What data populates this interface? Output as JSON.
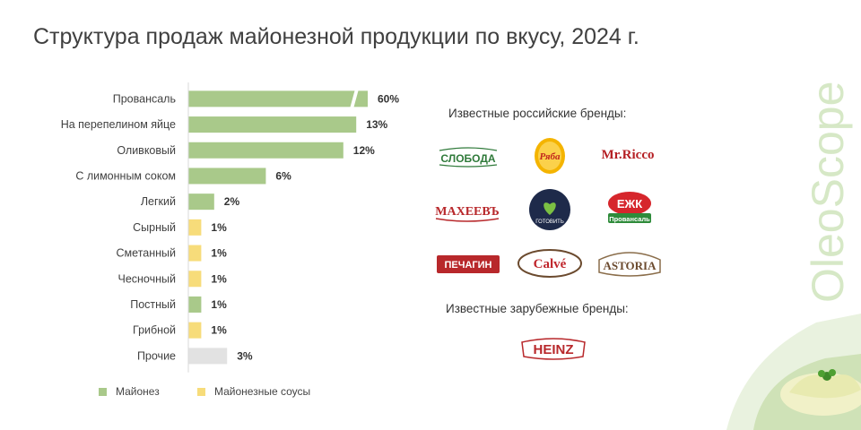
{
  "title": "Структура продаж майонезной продукции по вкусу, 2024 г.",
  "colors": {
    "mayonnaise": "#a9c98a",
    "sauce": "#f7dc7a",
    "other": "#e2e2e2"
  },
  "chart_data": {
    "type": "bar",
    "orientation": "horizontal",
    "categories": [
      "Провансаль",
      "На перепелином яйце",
      "Оливковый",
      "С лимонным соком",
      "Легкий",
      "Сырный",
      "Сметанный",
      "Чесночный",
      "Постный",
      "Грибной",
      "Прочие"
    ],
    "values": [
      60,
      13,
      12,
      6,
      2,
      1,
      1,
      1,
      1,
      1,
      3
    ],
    "value_labels": [
      "60%",
      "13%",
      "12%",
      "6%",
      "2%",
      "1%",
      "1%",
      "1%",
      "1%",
      "1%",
      "3%"
    ],
    "groups": [
      "mayonnaise",
      "mayonnaise",
      "mayonnaise",
      "mayonnaise",
      "mayonnaise",
      "sauce",
      "sauce",
      "sauce",
      "mayonnaise",
      "sauce",
      "other"
    ],
    "axis_break": true,
    "legend": [
      {
        "name": "Майонез",
        "group": "mayonnaise"
      },
      {
        "name": "Майонезные соусы",
        "group": "sauce"
      }
    ],
    "legend_position": "bottom"
  },
  "brands": {
    "russian_heading": "Известные российские бренды:",
    "foreign_heading": "Известные зарубежные бренды:",
    "russian": [
      {
        "text": "СЛОБОДА",
        "icon": "sloboda-logo"
      },
      {
        "text": "Ряба",
        "icon": "ryaba-logo"
      },
      {
        "text": "Mr.Ricco",
        "icon": "mr-ricco-logo"
      },
      {
        "text": "МАХЕЕВЪ",
        "icon": "maheev-logo"
      },
      {
        "text": "ГОТОВИТЬ",
        "icon": "ya-gotovit-logo"
      },
      {
        "text": "ЕЖК",
        "sub": "Провансаль",
        "icon": "ezhk-logo"
      },
      {
        "text": "ПЕЧАГИН",
        "icon": "pechagin-logo"
      },
      {
        "text": "Calvé",
        "icon": "calve-logo"
      },
      {
        "text": "ASTORIA",
        "icon": "astoria-logo"
      }
    ],
    "foreign": [
      {
        "text": "HEINZ",
        "icon": "heinz-logo"
      }
    ]
  },
  "watermark": "OleoScope"
}
